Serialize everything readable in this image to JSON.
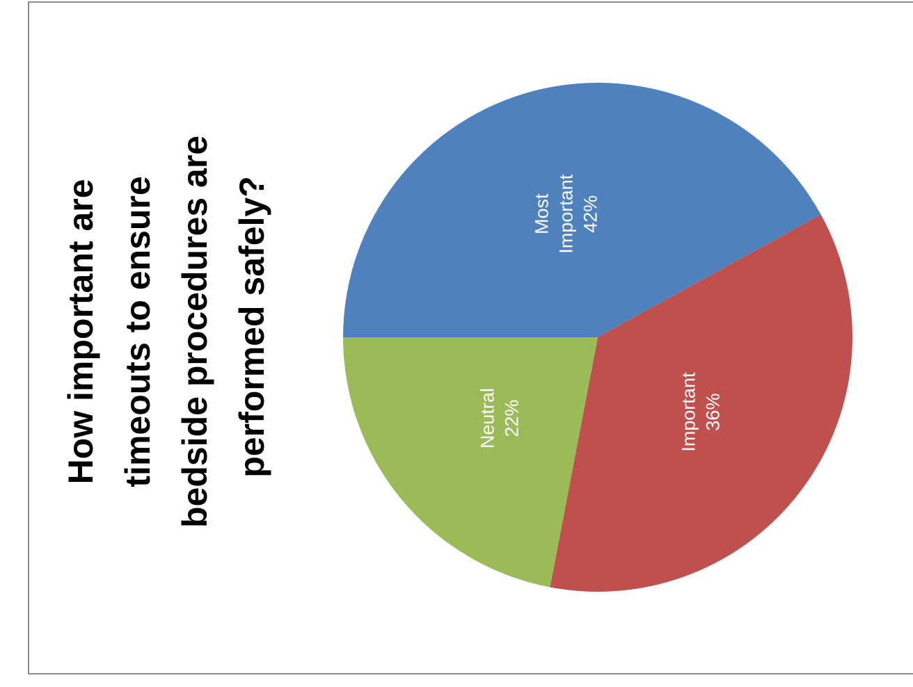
{
  "chart_data": {
    "type": "pie",
    "title_lines": [
      "How important are",
      "timeouts to ensure",
      "bedside procedures are",
      "performed safely?"
    ],
    "slices": [
      {
        "name": "Most Important",
        "label_lines": [
          "Most",
          "Important"
        ],
        "value": 42,
        "display": "42%",
        "color": "#4F81BD"
      },
      {
        "name": "Important",
        "label_lines": [
          "Important"
        ],
        "value": 36,
        "display": "36%",
        "color": "#C0504D"
      },
      {
        "name": "Neutral",
        "label_lines": [
          "Neutral"
        ],
        "value": 22,
        "display": "22%",
        "color": "#9BBB59"
      }
    ],
    "legend": "none"
  },
  "colors": {
    "border": "#8C8C8C",
    "background": "#FFFFFF"
  }
}
